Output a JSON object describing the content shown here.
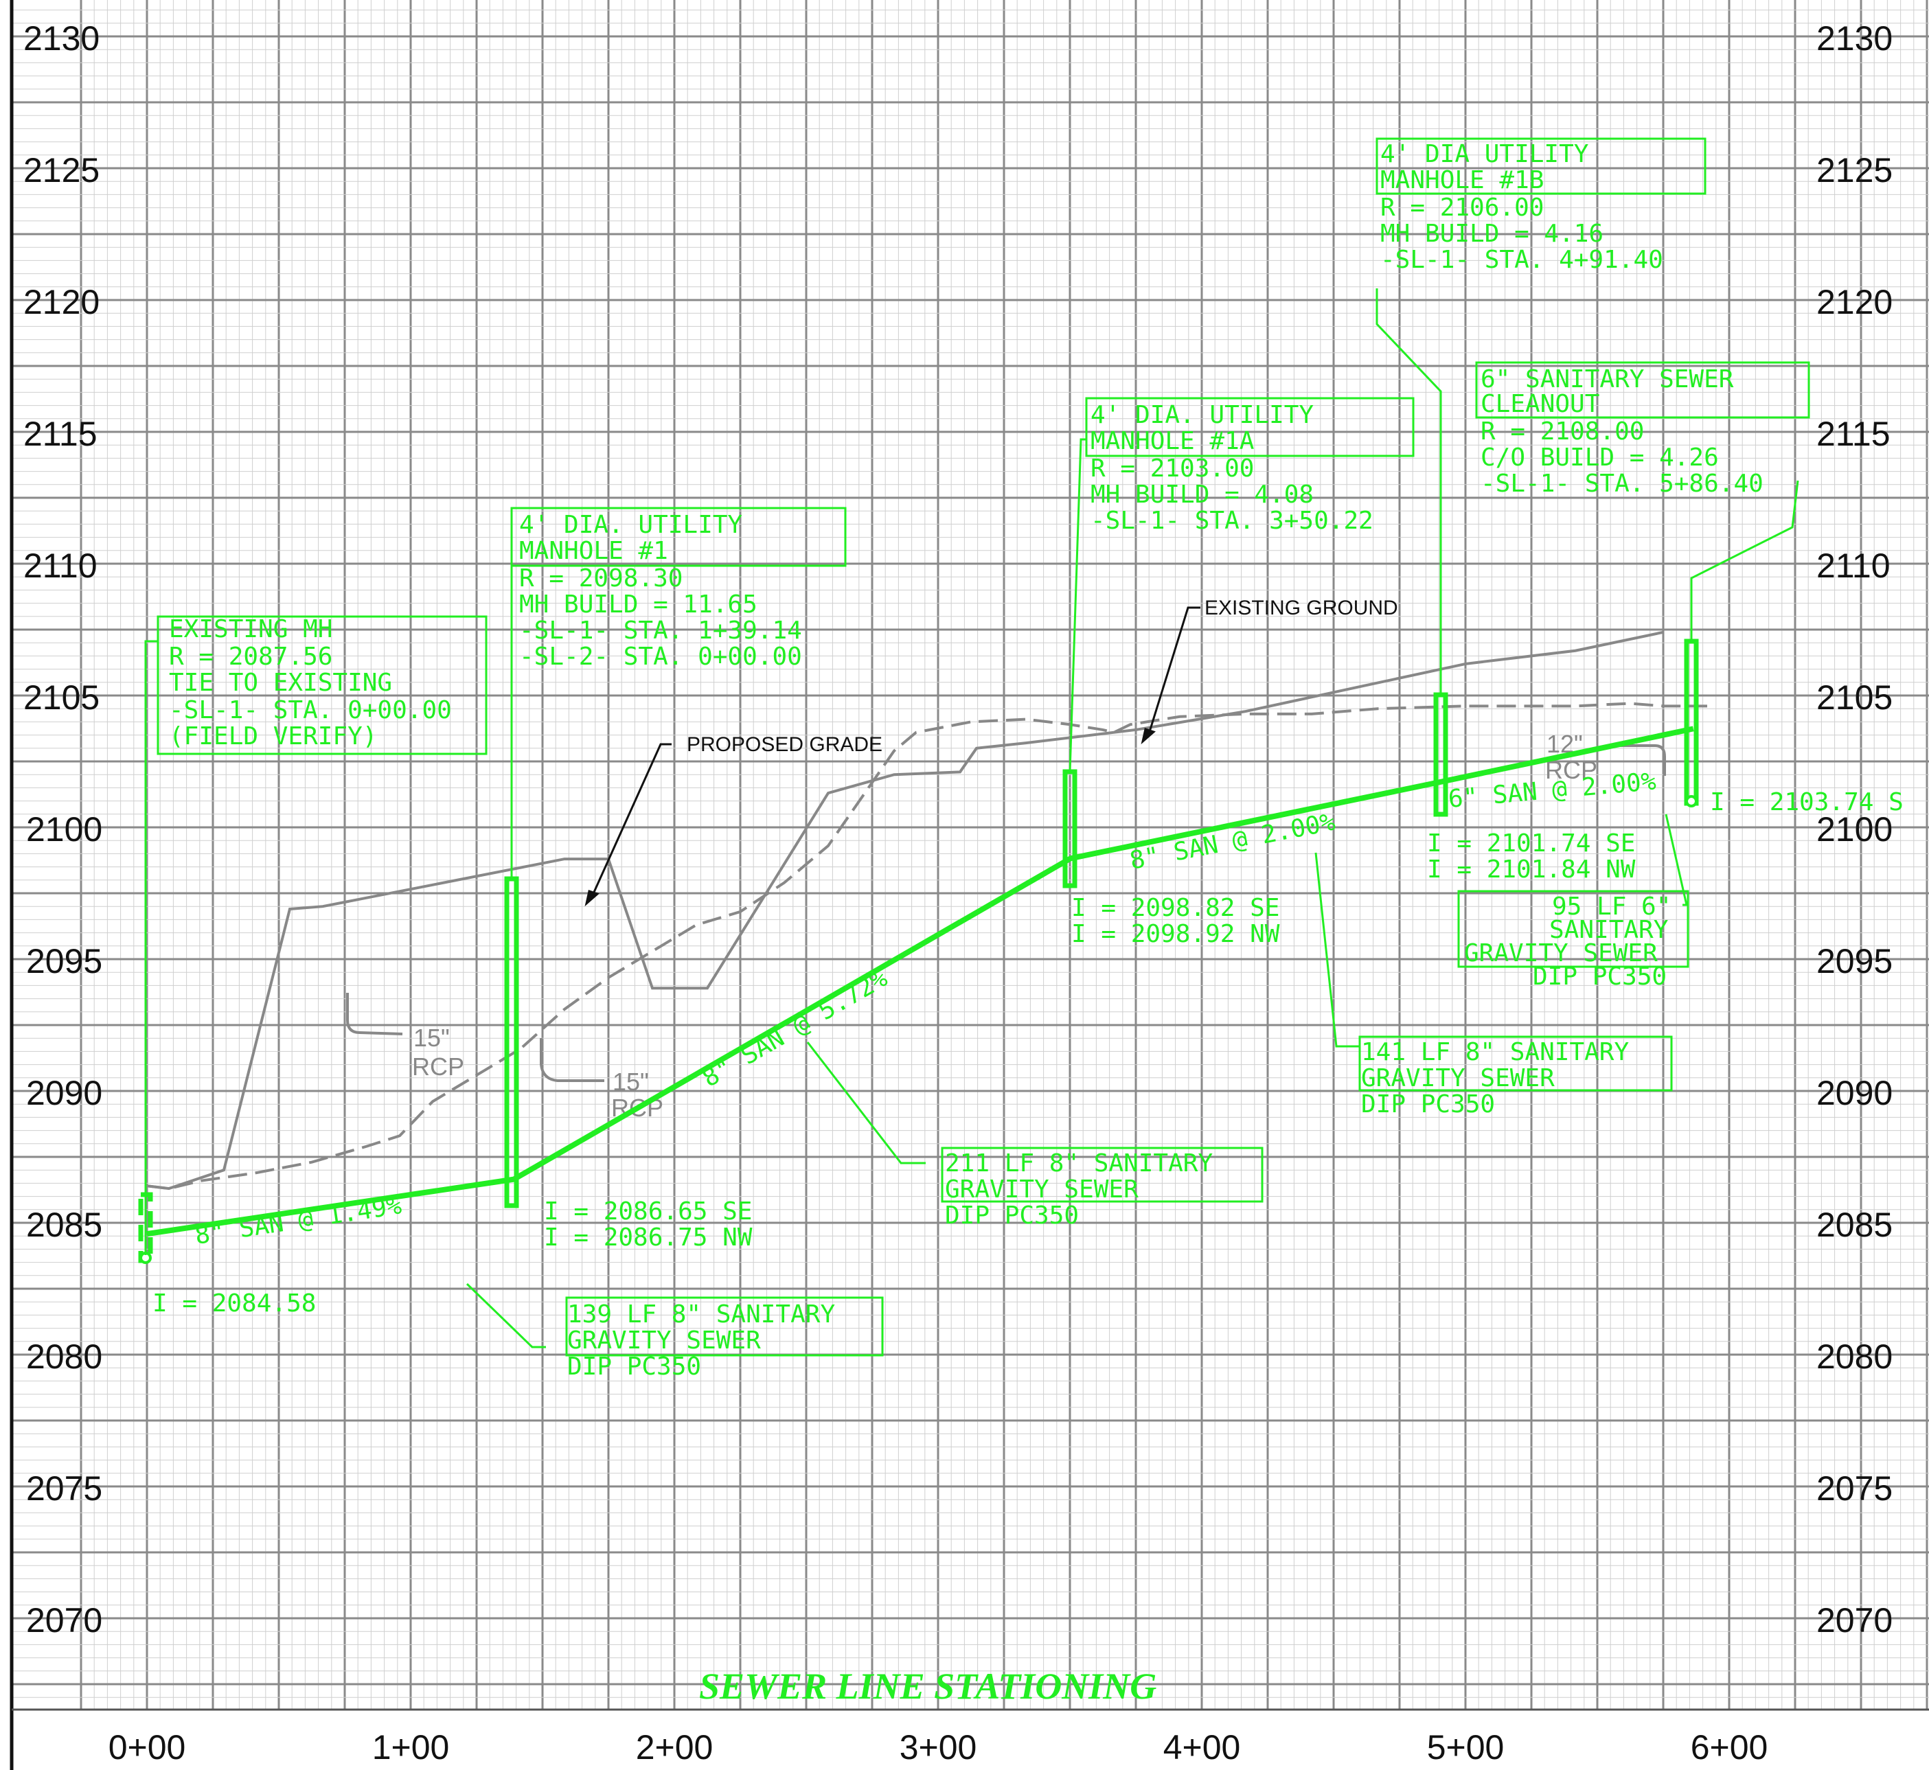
{
  "elevation_axis": {
    "labels": [
      "2130",
      "2125",
      "2120",
      "2115",
      "2110",
      "2105",
      "2100",
      "2095",
      "2090",
      "2085",
      "2080",
      "2075",
      "2070"
    ]
  },
  "station_axis": {
    "labels": [
      "0+00",
      "1+00",
      "2+00",
      "3+00",
      "4+00",
      "5+00",
      "6+00"
    ],
    "title": "SEWER  LINE  STATIONING"
  },
  "colors": {
    "sewer": "#22ee22",
    "grid": "#9a9a9a",
    "ground": "#888888",
    "text": "#111111"
  },
  "profile": {
    "sewer_invert": [
      [
        0,
        2084.58
      ],
      [
        139.14,
        2086.65
      ],
      [
        350.22,
        2098.82
      ],
      [
        491.4,
        2101.74
      ],
      [
        586.4,
        2103.74
      ]
    ],
    "existing_ground": [
      [
        0,
        2086.4
      ],
      [
        20,
        2086.3
      ],
      [
        50,
        2086.6
      ],
      [
        100,
        2086.9
      ],
      [
        150,
        2087.3
      ],
      [
        200,
        2087.9
      ],
      [
        230,
        2088.3
      ],
      [
        260,
        2089.6
      ],
      [
        300,
        2090.6
      ],
      [
        340,
        2091.6
      ],
      [
        380,
        2093.1
      ],
      [
        420,
        2094.3
      ],
      [
        460,
        2095.3
      ],
      [
        500,
        2096.3
      ],
      [
        540,
        2096.8
      ],
      [
        580,
        2097.9
      ],
      [
        620,
        2099.3
      ],
      [
        650,
        2101.1
      ],
      [
        680,
        2102.9
      ],
      [
        700,
        2103.6
      ],
      [
        750,
        2104.0
      ],
      [
        800,
        2104.1
      ],
      [
        840,
        2103.9
      ],
      [
        870,
        2103.7
      ],
      [
        880,
        2103.6
      ],
      [
        895,
        2103.9
      ],
      [
        940,
        2104.2
      ],
      [
        1000,
        2104.3
      ],
      [
        1060,
        2104.3
      ],
      [
        1120,
        2104.5
      ],
      [
        1200,
        2104.6
      ],
      [
        1260,
        2104.6
      ],
      [
        1300,
        2104.6
      ],
      [
        1350,
        2104.7
      ],
      [
        1380,
        2104.6
      ],
      [
        1420,
        2104.6
      ]
    ],
    "proposed_grade": [
      [
        0,
        2086.4
      ],
      [
        20,
        2086.3
      ],
      [
        70,
        2087.0
      ],
      [
        130,
        2096.9
      ],
      [
        160,
        2097.0
      ],
      [
        380,
        2098.8
      ],
      [
        420,
        2098.8
      ],
      [
        460,
        2093.9
      ],
      [
        510,
        2093.9
      ],
      [
        620,
        2101.3
      ],
      [
        680,
        2102.0
      ],
      [
        740,
        2102.1
      ],
      [
        755,
        2103.0
      ],
      [
        800,
        2103.2
      ],
      [
        900,
        2103.7
      ],
      [
        1000,
        2104.4
      ],
      [
        1100,
        2105.3
      ],
      [
        1200,
        2106.2
      ],
      [
        1300,
        2106.7
      ],
      [
        1380,
        2107.4
      ]
    ]
  },
  "manholes": [
    {
      "id": "existing-mh",
      "lines": [
        "EXISTING MH",
        "R = 2087.56",
        "TIE TO EXISTING",
        "-SL-1- STA. 0+00.00",
        "(FIELD VERIFY)"
      ]
    },
    {
      "id": "mh-1",
      "lines": [
        "4' DIA. UTILITY",
        "MANHOLE #1",
        "R = 2098.30",
        "MH BUILD = 11.65",
        "-SL-1- STA. 1+39.14",
        "-SL-2- STA. 0+00.00"
      ]
    },
    {
      "id": "mh-1a",
      "lines": [
        "4' DIA. UTILITY",
        "MANHOLE #1A",
        "R = 2103.00",
        "MH BUILD = 4.08",
        "-SL-1- STA. 3+50.22"
      ]
    },
    {
      "id": "mh-1b",
      "lines": [
        "4' DIA UTILITY",
        "MANHOLE #1B",
        "R = 2106.00",
        "MH BUILD = 4.16",
        "-SL-1- STA. 4+91.40"
      ]
    },
    {
      "id": "cleanout",
      "lines": [
        "6\" SANITARY SEWER",
        "CLEANOUT",
        "R = 2108.00",
        "C/O BUILD = 4.26",
        "-SL-1- STA. 5+86.40"
      ]
    }
  ],
  "inverts": {
    "start": "I = 2084.58",
    "mh1_se": "I = 2086.65 SE",
    "mh1_nw": "I = 2086.75 NW",
    "mh1a_se": "I = 2098.82 SE",
    "mh1a_nw": "I = 2098.92 NW",
    "mh1b_se": "I = 2101.74 SE",
    "mh1b_nw": "I = 2101.84 NW",
    "cleanout": "I = 2103.74 S"
  },
  "pipe_labels": {
    "seg1": "8\" SAN @ 1.49%",
    "seg2": "8\" SAN @ 5.72%",
    "seg3": "8\" SAN @ 2.00%",
    "seg4": "6\" SAN @ 2.00%"
  },
  "pipe_notes": [
    {
      "id": "note-139",
      "lines": [
        "139 LF 8\" SANITARY",
        "GRAVITY SEWER",
        "DIP PC350"
      ]
    },
    {
      "id": "note-211",
      "lines": [
        "211 LF 8\" SANITARY",
        "GRAVITY SEWER",
        "DIP PC350"
      ]
    },
    {
      "id": "note-141",
      "lines": [
        "141 LF 8\" SANITARY",
        "GRAVITY SEWER",
        "DIP PC350"
      ]
    },
    {
      "id": "note-95",
      "lines": [
        "95 LF 6\"",
        "SANITARY",
        "GRAVITY SEWER",
        "DIP PC350"
      ]
    }
  ],
  "callouts": {
    "existing_ground": "EXISTING GROUND",
    "proposed_grade": "PROPOSED GRADE"
  },
  "crossings": [
    {
      "id": "rcp-1",
      "size": "15\"",
      "type": "RCP"
    },
    {
      "id": "rcp-2",
      "size": "15\"",
      "type": "RCP"
    },
    {
      "id": "rcp-3",
      "size": "12\"",
      "type": "RCP"
    }
  ]
}
